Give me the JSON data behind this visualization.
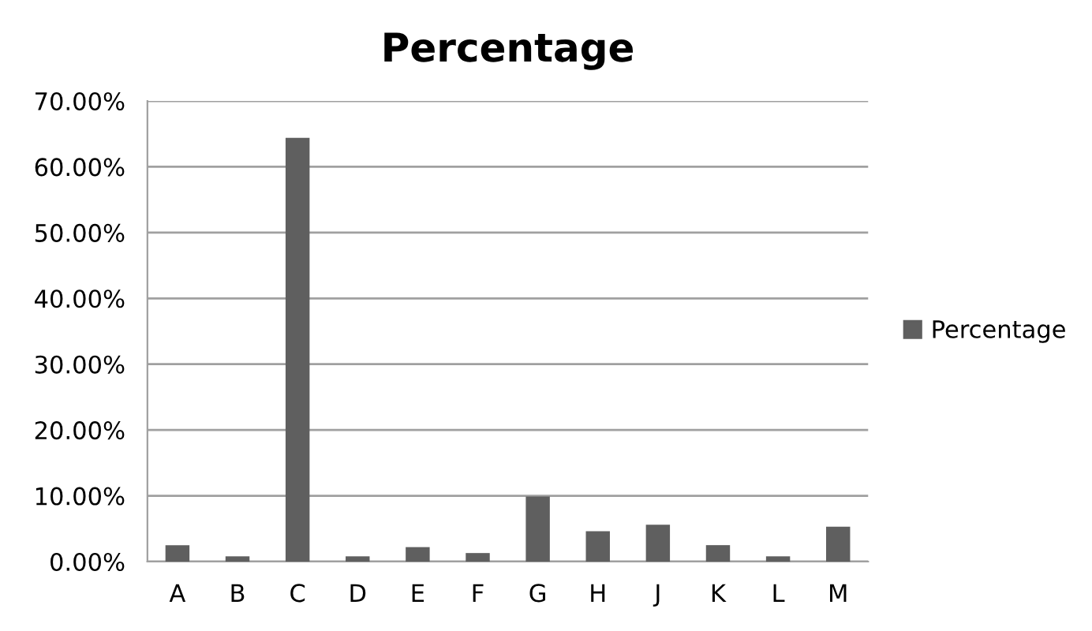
{
  "chart_data": {
    "type": "bar",
    "title": "Percentage",
    "categories": [
      "A",
      "B",
      "C",
      "D",
      "E",
      "F",
      "G",
      "H",
      "J",
      "K",
      "L",
      "M"
    ],
    "series": [
      {
        "name": "Percentage",
        "color": "#5f5f5f",
        "values": [
          2.5,
          0.8,
          64.4,
          0.8,
          2.2,
          1.3,
          9.9,
          4.6,
          5.6,
          2.5,
          0.8,
          5.3
        ]
      }
    ],
    "ylim": [
      0,
      70
    ],
    "yticks": [
      {
        "value": 0,
        "label": "0.00%"
      },
      {
        "value": 10,
        "label": "10.00%"
      },
      {
        "value": 20,
        "label": "20.00%"
      },
      {
        "value": 30,
        "label": "30.00%"
      },
      {
        "value": 40,
        "label": "40.00%"
      },
      {
        "value": 50,
        "label": "50.00%"
      },
      {
        "value": 60,
        "label": "60.00%"
      },
      {
        "value": 70,
        "label": "70.00%"
      }
    ],
    "grid": "y",
    "legend": "right"
  }
}
